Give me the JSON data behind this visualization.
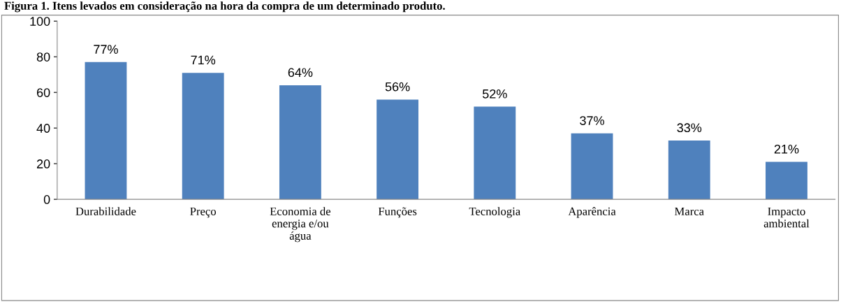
{
  "chart_data": {
    "type": "bar",
    "title": "Figura 1. Itens levados em consideração na hora da compra de um determinado produto.",
    "categories": [
      "Durabilidade",
      "Preço",
      "Economia de\nenergia e/ou\nágua",
      "Funções",
      "Tecnologia",
      "Aparência",
      "Marca",
      "Impacto\nambiental"
    ],
    "values": [
      77,
      71,
      64,
      56,
      52,
      37,
      33,
      21
    ],
    "value_labels": [
      "77%",
      "71%",
      "64%",
      "56%",
      "52%",
      "37%",
      "33%",
      "21%"
    ],
    "color": "#4f81bd",
    "ylim": [
      0,
      100
    ],
    "yticks": [
      0,
      20,
      40,
      60,
      80,
      100
    ],
    "grid": false
  }
}
